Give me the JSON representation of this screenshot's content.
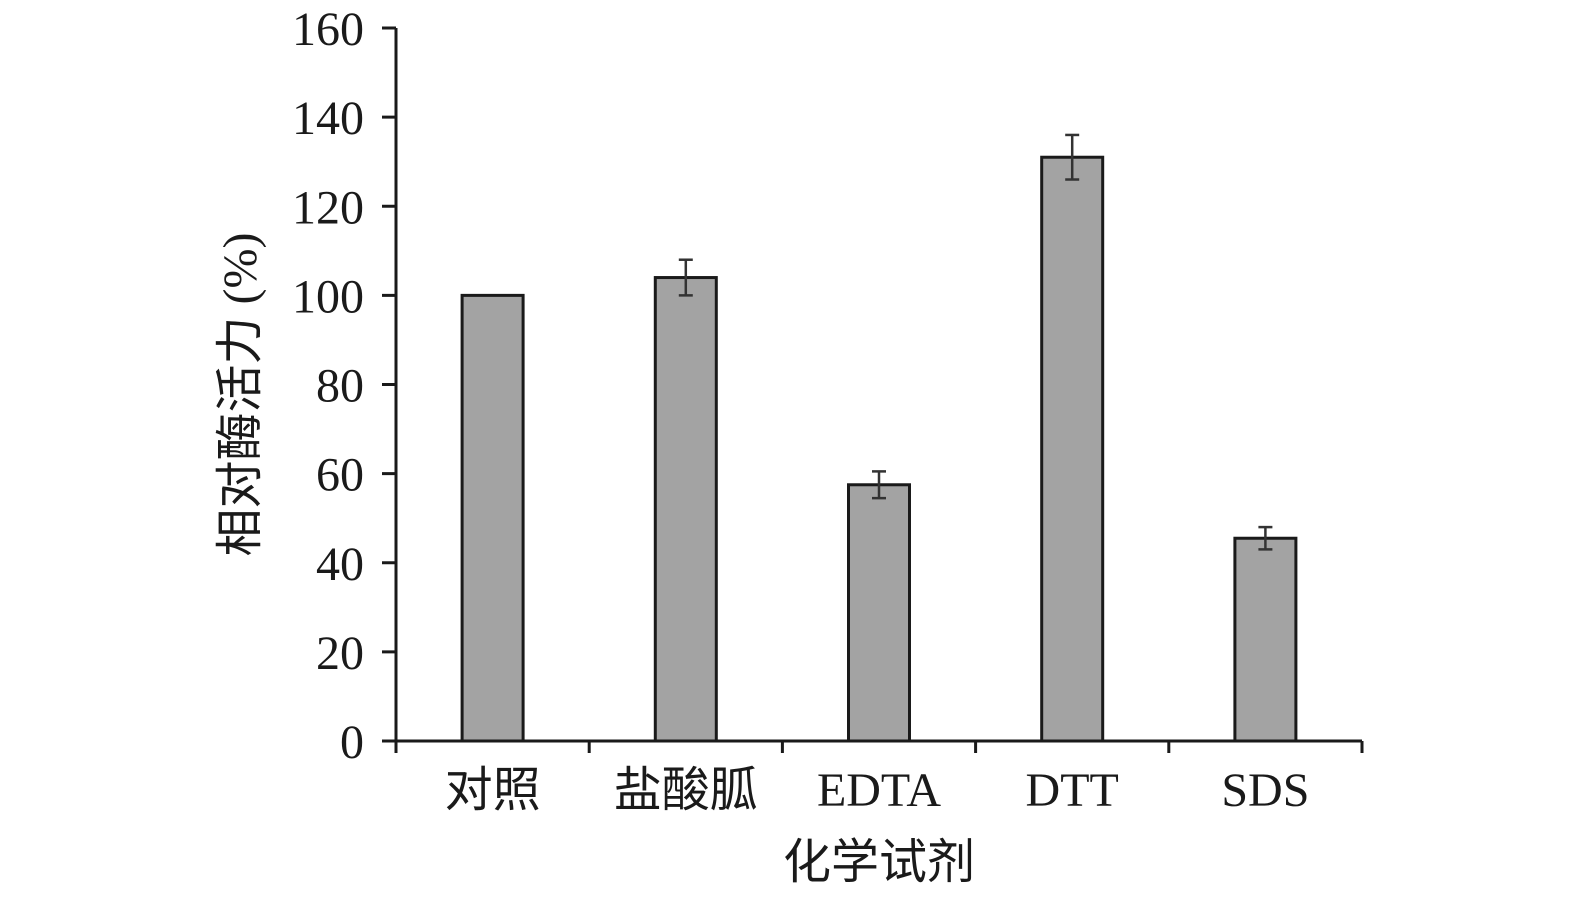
{
  "chart_data": {
    "type": "bar",
    "categories": [
      "对照",
      "盐酸胍",
      "EDTA",
      "DTT",
      "SDS"
    ],
    "series": [
      {
        "values": [
          100,
          104,
          57.5,
          131,
          45.5
        ],
        "errors": [
          0,
          4,
          3,
          5,
          2.5
        ]
      }
    ],
    "xlabel": "化学试剂",
    "ylabel": "相对酶活力 (%)",
    "ylim": [
      0,
      160
    ],
    "yticks": [
      0,
      20,
      40,
      60,
      80,
      100,
      120,
      140,
      160
    ],
    "grid": false,
    "legend": "none",
    "bar_color": "#a3a3a3",
    "bar_edge_color": "#1a1a1a",
    "error_bar_color": "#333333",
    "axis_color": "#1a1a1a"
  }
}
